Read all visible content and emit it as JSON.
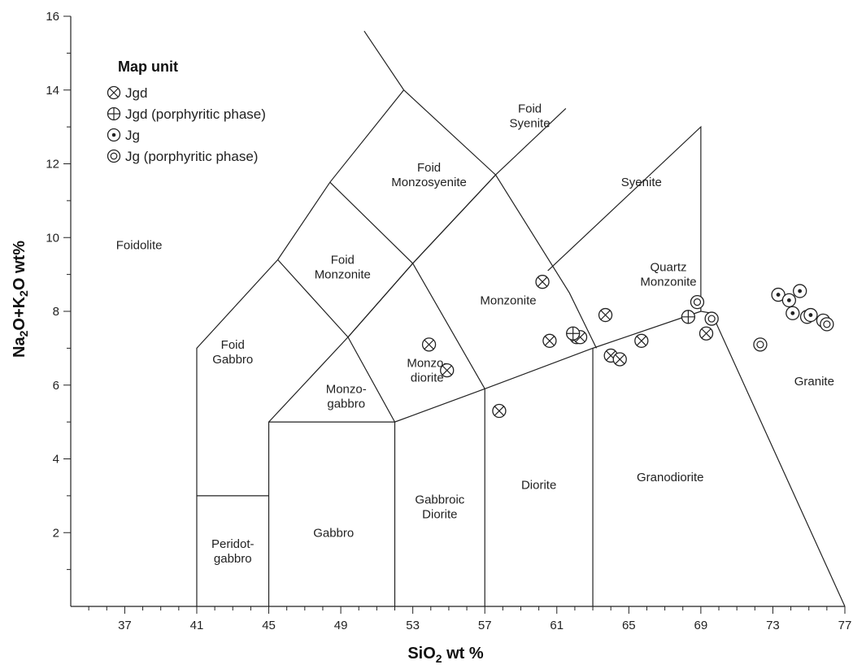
{
  "chart_data": {
    "type": "scatter",
    "xlim": [
      34,
      77
    ],
    "ylim": [
      0,
      16
    ],
    "x_ticks": [
      37,
      41,
      45,
      49,
      53,
      57,
      61,
      65,
      69,
      73,
      77
    ],
    "y_ticks": [
      2,
      4,
      6,
      8,
      10,
      12,
      14,
      16
    ],
    "xlabel": {
      "pre": "SiO",
      "sub": "2",
      "post": " wt %"
    },
    "ylabel": {
      "a": "Na",
      "a_sub": "2",
      "b": "O+K",
      "b_sub": "2",
      "c": "O wt%"
    },
    "grid": false,
    "legend": {
      "title": "Map unit",
      "placement": "top-left",
      "items": [
        {
          "label": "Jgd",
          "marker": "circle-cross"
        },
        {
          "label": "Jgd (porphyritic phase)",
          "marker": "circle-plus"
        },
        {
          "label": "Jg",
          "marker": "circle-dot"
        },
        {
          "label": "Jg (porphyritic phase)",
          "marker": "double-circle"
        }
      ]
    },
    "boundaries": [
      [
        [
          41,
          0
        ],
        [
          41,
          7
        ],
        [
          45.5,
          9.4
        ],
        [
          48.4,
          11.5
        ],
        [
          52.5,
          14
        ],
        [
          48.4,
          11.5
        ],
        [
          45.5,
          9.4
        ],
        [
          41,
          7
        ]
      ],
      [
        [
          41,
          3
        ],
        [
          45,
          3
        ]
      ],
      [
        [
          45,
          0
        ],
        [
          45,
          5
        ],
        [
          52,
          5
        ],
        [
          52,
          0
        ]
      ],
      [
        [
          45,
          5
        ],
        [
          49.4,
          7.3
        ],
        [
          52,
          5
        ]
      ],
      [
        [
          45.5,
          9.4
        ],
        [
          49.4,
          7.3
        ],
        [
          53,
          9.3
        ],
        [
          48.4,
          11.5
        ]
      ],
      [
        [
          53,
          9.3
        ],
        [
          57.6,
          11.7
        ],
        [
          52.5,
          14
        ],
        [
          50.3,
          15.6
        ]
      ],
      [
        [
          49.4,
          7.3
        ],
        [
          53,
          9.3
        ]
      ],
      [
        [
          52,
          5
        ],
        [
          57,
          5.9
        ],
        [
          63,
          7
        ],
        [
          69,
          8
        ]
      ],
      [
        [
          57,
          0
        ],
        [
          57,
          5.9
        ]
      ],
      [
        [
          63,
          0
        ],
        [
          63,
          7
        ]
      ],
      [
        [
          53,
          9.3
        ],
        [
          57,
          5.9
        ]
      ],
      [
        [
          57.6,
          11.7
        ],
        [
          61.7,
          8.5
        ],
        [
          63.2,
          7
        ]
      ],
      [
        [
          57.6,
          11.7
        ],
        [
          61.5,
          13.5
        ]
      ],
      [
        [
          57.6,
          11.7
        ],
        [
          53,
          9.3
        ]
      ],
      [
        [
          60.5,
          9.1
        ],
        [
          69,
          13
        ],
        [
          69,
          8
        ],
        [
          69.6,
          7.95
        ],
        [
          77,
          0
        ]
      ]
    ],
    "fields": [
      {
        "name": "Foidolite",
        "x": 37.8,
        "y": 9.8
      },
      {
        "name": "Foid\nGabbro",
        "x": 43,
        "y": 6.9
      },
      {
        "name": "Foid\nMonzonite",
        "x": 49.1,
        "y": 9.2
      },
      {
        "name": "Foid\nMonzosyenite",
        "x": 53.9,
        "y": 11.7
      },
      {
        "name": "Foid\nSyenite",
        "x": 59.5,
        "y": 13.3
      },
      {
        "name": "Syenite",
        "x": 65.7,
        "y": 11.5
      },
      {
        "name": "Quartz\nMonzonite",
        "x": 67.2,
        "y": 9.0
      },
      {
        "name": "Monzonite",
        "x": 58.3,
        "y": 8.3
      },
      {
        "name": "Monzo-\ndiorite",
        "x": 53.8,
        "y": 6.4
      },
      {
        "name": "Monzo-\ngabbro",
        "x": 49.3,
        "y": 5.7
      },
      {
        "name": "Gabbro",
        "x": 48.6,
        "y": 2
      },
      {
        "name": "Peridot-\ngabbro",
        "x": 43,
        "y": 1.5
      },
      {
        "name": "Gabbroic\nDiorite",
        "x": 54.5,
        "y": 2.7
      },
      {
        "name": "Diorite",
        "x": 60,
        "y": 3.3
      },
      {
        "name": "Granodiorite",
        "x": 67.3,
        "y": 3.5
      },
      {
        "name": "Granite",
        "x": 75.3,
        "y": 6.1
      }
    ],
    "series": [
      {
        "name": "Jgd",
        "marker": "circle-cross",
        "points": [
          [
            53.9,
            7.1
          ],
          [
            54.9,
            6.4
          ],
          [
            57.8,
            5.3
          ],
          [
            60.2,
            8.8
          ],
          [
            60.6,
            7.2
          ],
          [
            62.1,
            7.3
          ],
          [
            62.3,
            7.3
          ],
          [
            63.7,
            7.9
          ],
          [
            64,
            6.8
          ],
          [
            64.5,
            6.7
          ],
          [
            65.7,
            7.2
          ],
          [
            69.3,
            7.4
          ]
        ]
      },
      {
        "name": "Jgd (porphyritic phase)",
        "marker": "circle-plus",
        "points": [
          [
            61.9,
            7.4
          ],
          [
            68.3,
            7.85
          ]
        ]
      },
      {
        "name": "Jg",
        "marker": "circle-dot",
        "points": [
          [
            73.3,
            8.45
          ],
          [
            73.9,
            8.3
          ],
          [
            74.1,
            7.95
          ],
          [
            74.5,
            8.55
          ],
          [
            74.9,
            7.85
          ],
          [
            75.1,
            7.9
          ],
          [
            75.8,
            7.75
          ]
        ]
      },
      {
        "name": "Jg (porphyritic phase)",
        "marker": "double-circle",
        "points": [
          [
            68.8,
            8.25
          ],
          [
            69.6,
            7.8
          ],
          [
            72.3,
            7.1
          ],
          [
            76,
            7.65
          ]
        ]
      }
    ]
  }
}
